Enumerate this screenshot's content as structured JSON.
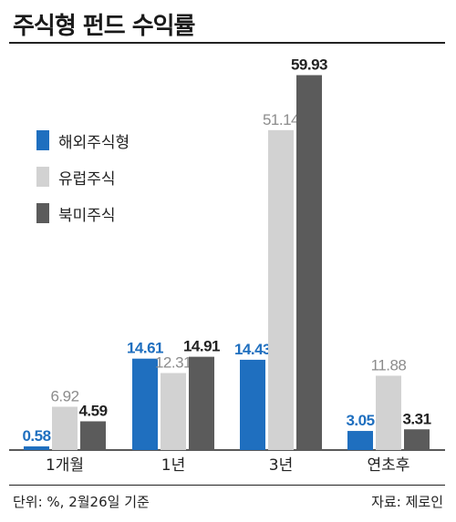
{
  "header": {
    "title": "주식형 펀드 수익률"
  },
  "footer": {
    "unit_note": "단위: %, 2월26일 기준",
    "source": "자료: 제로인"
  },
  "colors": {
    "blue": "#1f6fbf",
    "light": "#d2d2d2",
    "dark": "#5b5b5b",
    "text_blue": "#1f6fbf",
    "text_gray": "#8c8c8c",
    "text_dark": "#222222"
  },
  "chart_data": {
    "type": "bar",
    "title": "주식형 펀드 수익률",
    "categories": [
      "1개월",
      "1년",
      "3년",
      "연초후"
    ],
    "series": [
      {
        "name": "해외주식형",
        "values": [
          0.58,
          14.61,
          14.43,
          3.05
        ]
      },
      {
        "name": "유럽주식",
        "values": [
          6.92,
          12.31,
          51.14,
          11.88
        ]
      },
      {
        "name": "북미주식",
        "values": [
          4.59,
          14.91,
          59.93,
          3.31
        ]
      }
    ],
    "data_labels": [
      [
        "0.58",
        "14.61",
        "14.43",
        "3.05"
      ],
      [
        "6.92",
        "12.31",
        "51.14",
        "11.88"
      ],
      [
        "4.59",
        "14.91",
        "59.93",
        "3.31"
      ]
    ],
    "xlabel": "",
    "ylabel": "",
    "ylim": [
      0,
      60
    ],
    "grid": false,
    "legend": "top-left"
  }
}
